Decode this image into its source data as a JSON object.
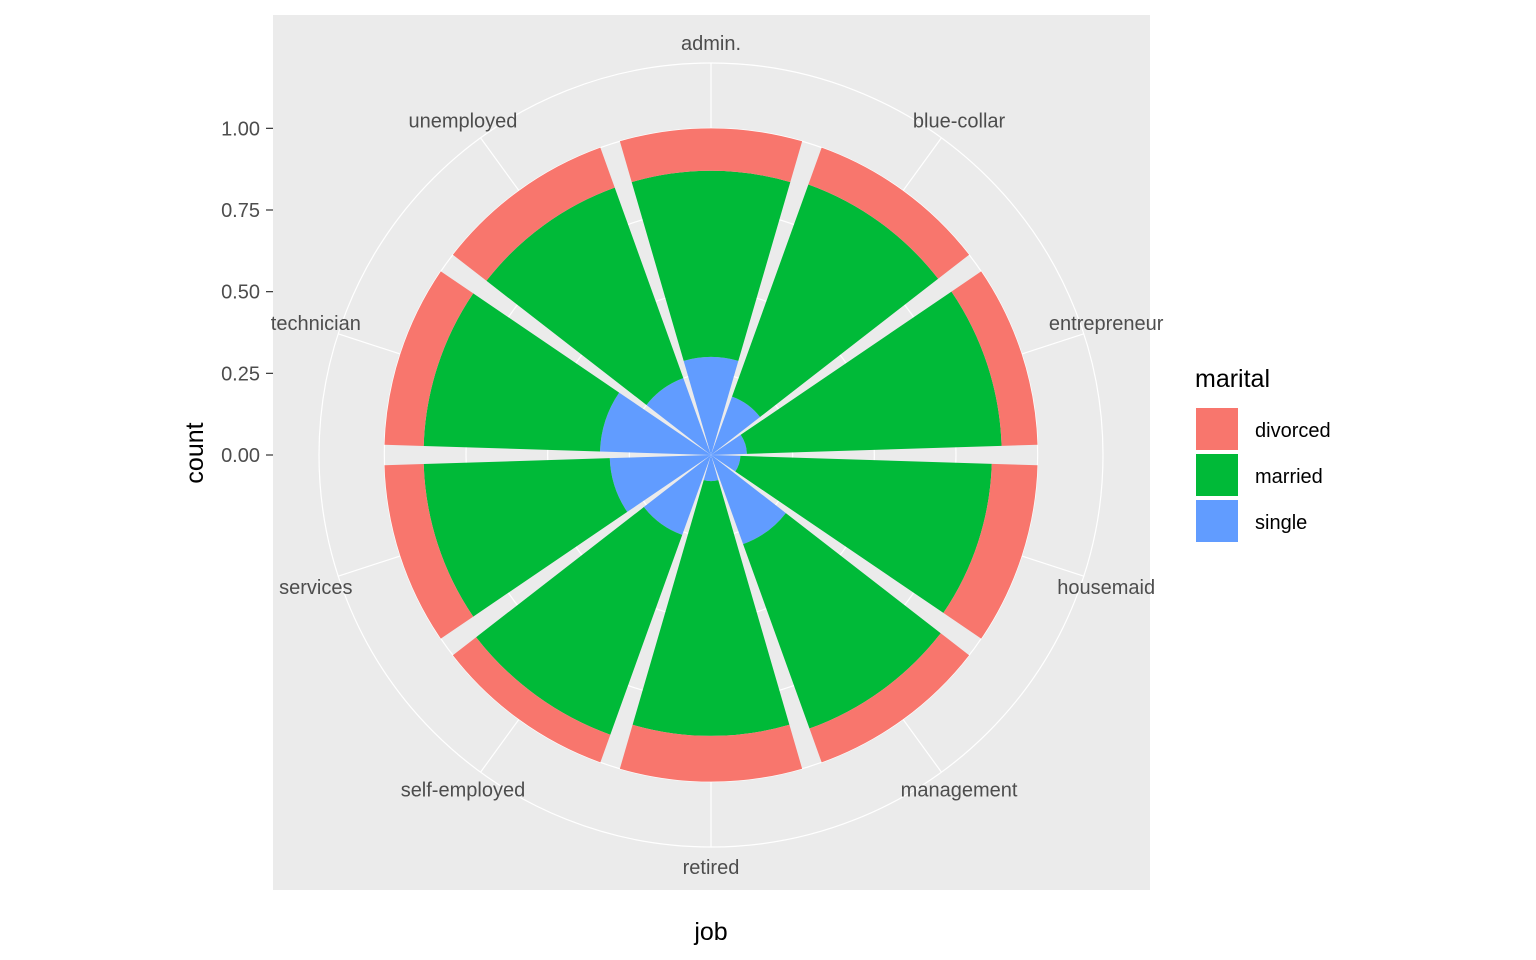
{
  "chart_data": {
    "type": "bar",
    "coord": "polar",
    "position": "fill",
    "xlabel": "job",
    "ylabel": "count",
    "ylim": [
      0,
      1.2
    ],
    "yticks": [
      "0.00",
      "0.25",
      "0.50",
      "0.75",
      "1.00"
    ],
    "ytick_values": [
      0,
      0.25,
      0.5,
      0.75,
      1.0
    ],
    "categories": [
      "admin.",
      "blue-collar",
      "entrepreneur",
      "housemaid",
      "management",
      "retired",
      "self-employed",
      "services",
      "technician",
      "unemployed"
    ],
    "series": [
      {
        "name": "divorced",
        "color": "#F8766D",
        "values": [
          0.13,
          0.12,
          0.11,
          0.14,
          0.11,
          0.14,
          0.09,
          0.12,
          0.12,
          0.13
        ]
      },
      {
        "name": "married",
        "color": "#00BA38",
        "values": [
          0.57,
          0.69,
          0.78,
          0.77,
          0.6,
          0.78,
          0.65,
          0.57,
          0.54,
          0.62
        ]
      },
      {
        "name": "single",
        "color": "#619CFF",
        "values": [
          0.3,
          0.19,
          0.11,
          0.09,
          0.29,
          0.08,
          0.26,
          0.31,
          0.34,
          0.25
        ]
      }
    ],
    "grid": true,
    "legend": {
      "title": "marital",
      "position": "right"
    }
  }
}
